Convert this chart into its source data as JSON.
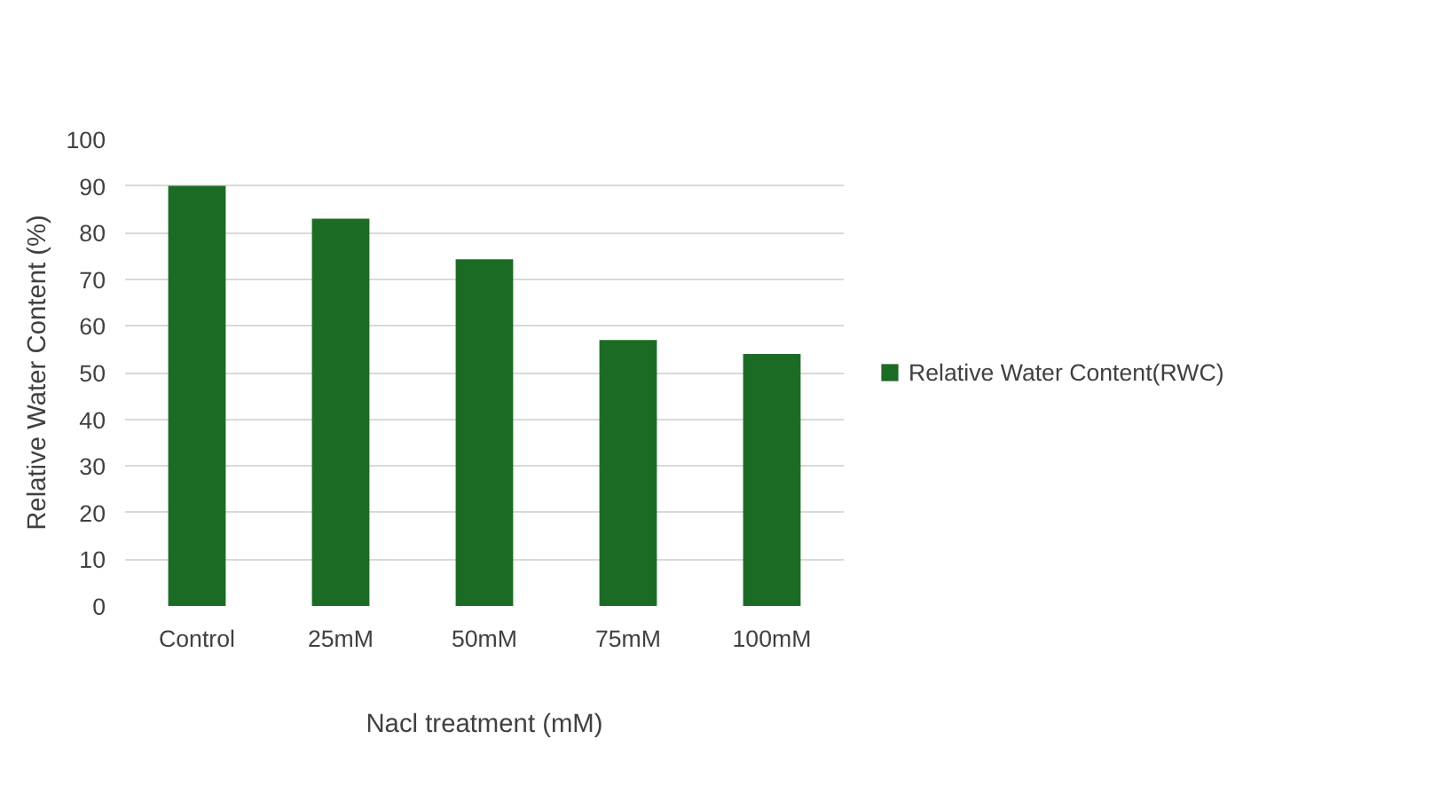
{
  "chart_data": {
    "type": "bar",
    "xlabel": "Nacl treatment (mM)",
    "ylabel": "Relative Water Content (%)",
    "categories": [
      "Control",
      "25mM",
      "50mM",
      "75mM",
      "100mM"
    ],
    "series": [
      {
        "name": "Relative Water Content(RWC)",
        "color": "#1b6b25",
        "values": [
          90,
          83,
          74.3,
          57,
          54
        ]
      }
    ],
    "ylim": [
      0,
      100
    ],
    "yticks": [
      0,
      10,
      20,
      30,
      40,
      50,
      60,
      70,
      80,
      90,
      100
    ],
    "grid": "y",
    "legend": "right"
  }
}
